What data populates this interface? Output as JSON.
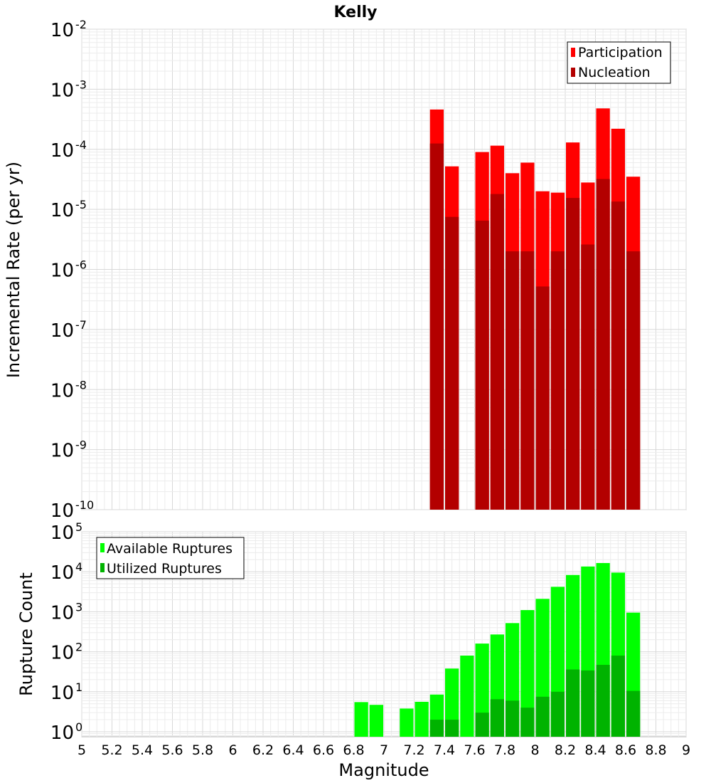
{
  "chart_data": [
    {
      "type": "bar",
      "title": "Kelly",
      "xlabel": "",
      "ylabel": "Incremental Rate (per yr)",
      "yscale": "log",
      "ylim": [
        1e-10,
        0.01
      ],
      "xlim": [
        5,
        9
      ],
      "bin_width": 0.1,
      "legend_position": "top-right",
      "grid": true,
      "y_ticks": [
        {
          "base": "10",
          "exp": "-10"
        },
        {
          "base": "10",
          "exp": "-9"
        },
        {
          "base": "10",
          "exp": "-8"
        },
        {
          "base": "10",
          "exp": "-7"
        },
        {
          "base": "10",
          "exp": "-6"
        },
        {
          "base": "10",
          "exp": "-5"
        },
        {
          "base": "10",
          "exp": "-4"
        },
        {
          "base": "10",
          "exp": "-3"
        },
        {
          "base": "10",
          "exp": "-2"
        }
      ],
      "x": [
        7.35,
        7.45,
        7.65,
        7.75,
        7.85,
        7.95,
        8.05,
        8.15,
        8.25,
        8.35,
        8.45,
        8.55,
        8.65
      ],
      "series": [
        {
          "name": "Participation",
          "color": "#ff0000",
          "values": [
            0.00046,
            5.2e-05,
            9e-05,
            0.000115,
            4e-05,
            6e-05,
            2e-05,
            1.9e-05,
            0.00013,
            2.8e-05,
            0.00048,
            0.00022,
            3.5e-05
          ]
        },
        {
          "name": "Nucleation",
          "color": "#b30000",
          "values": [
            0.000125,
            7.5e-06,
            6.5e-06,
            1.8e-05,
            2e-06,
            2e-06,
            5.2e-07,
            2e-06,
            1.55e-05,
            2.6e-06,
            3.2e-05,
            1.35e-05,
            2e-06
          ]
        }
      ]
    },
    {
      "type": "bar",
      "title": "",
      "xlabel": "Magnitude",
      "ylabel": "Rupture Count",
      "yscale": "log",
      "ylim": [
        0.75,
        100000
      ],
      "xlim": [
        5,
        9
      ],
      "bin_width": 0.1,
      "legend_position": "top-left",
      "grid": true,
      "y_ticks": [
        {
          "base": "10",
          "exp": "0"
        },
        {
          "base": "10",
          "exp": "1"
        },
        {
          "base": "10",
          "exp": "2"
        },
        {
          "base": "10",
          "exp": "3"
        },
        {
          "base": "10",
          "exp": "4"
        },
        {
          "base": "10",
          "exp": "5"
        }
      ],
      "x_ticks": [
        "5",
        "5.2",
        "5.4",
        "5.6",
        "5.8",
        "6",
        "6.2",
        "6.4",
        "6.6",
        "6.8",
        "7",
        "7.2",
        "7.4",
        "7.6",
        "7.8",
        "8",
        "8.2",
        "8.4",
        "8.6",
        "8.8",
        "9"
      ],
      "x": [
        6.85,
        6.95,
        7.15,
        7.25,
        7.35,
        7.45,
        7.55,
        7.65,
        7.75,
        7.85,
        7.95,
        8.05,
        8.15,
        8.25,
        8.35,
        8.45,
        8.55,
        8.65
      ],
      "series": [
        {
          "name": "Available Ruptures",
          "color": "#00ff00",
          "values": [
            5.5,
            4.7,
            3.8,
            5.6,
            8.5,
            38,
            80,
            160,
            270,
            520,
            1100,
            2100,
            4200,
            8300,
            13500,
            16500,
            9500,
            950
          ]
        },
        {
          "name": "Utilized Ruptures",
          "color": "#00b300",
          "values": [
            null,
            null,
            null,
            null,
            2,
            2,
            null,
            3,
            6.5,
            6,
            4,
            7.5,
            10,
            36,
            34,
            47,
            80,
            10.5
          ]
        }
      ]
    }
  ]
}
